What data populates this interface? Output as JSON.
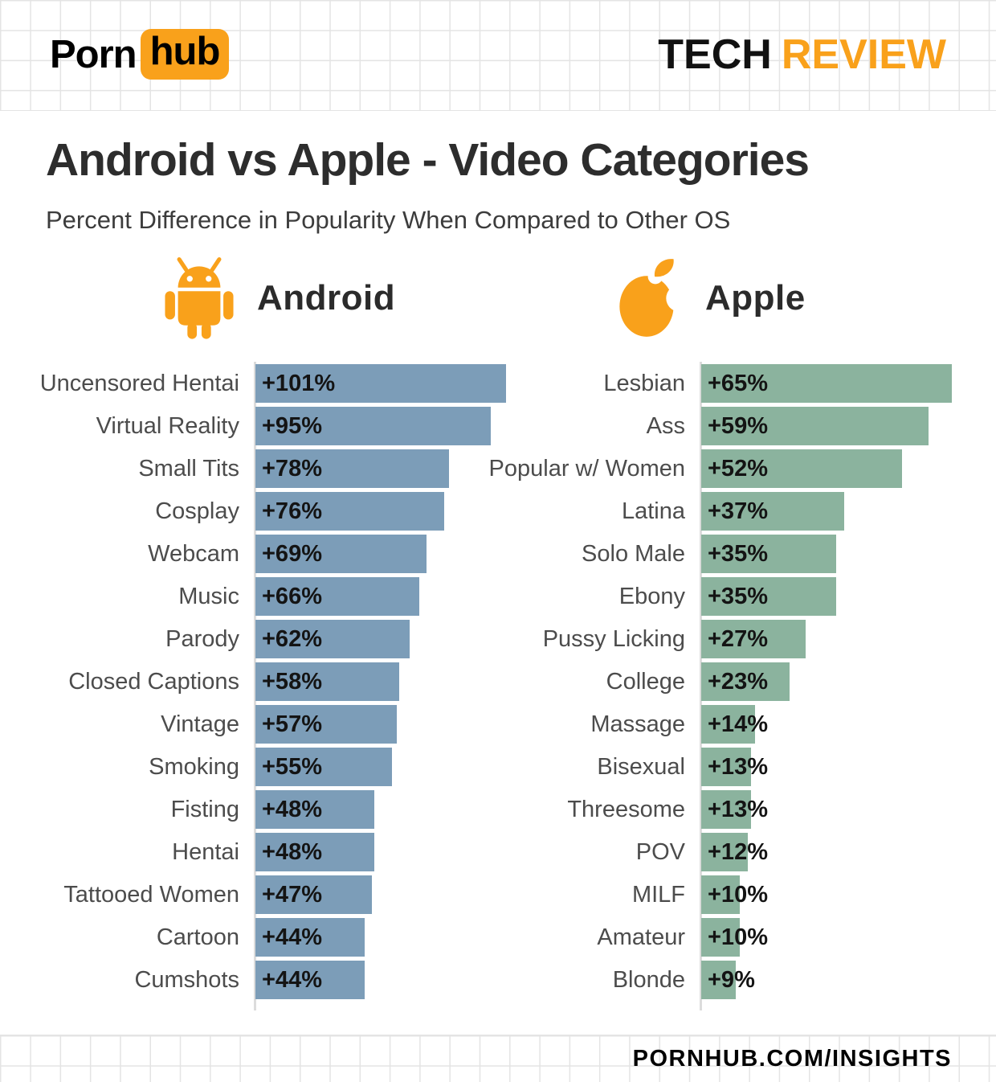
{
  "header": {
    "logo_part1": "Porn",
    "logo_part2": "hub",
    "brand_part1": "TECH",
    "brand_part2": "REVIEW"
  },
  "title": "Android vs Apple - Video Categories",
  "subtitle": "Percent Difference in Popularity When Compared to Other OS",
  "footer": {
    "url": "PORNHUB.COM/INSIGHTS"
  },
  "colors": {
    "accent_orange": "#f9a11b",
    "android_bar": "#7c9db8",
    "apple_bar": "#8bb39e",
    "grid_line": "#e4e4e4",
    "title_text": "#2d2d2d",
    "category_text": "#4c4c4c"
  },
  "chart_data": [
    {
      "type": "bar",
      "os": "Android",
      "icon": "android-robot-icon",
      "bar_color": "#7c9db8",
      "orientation": "horizontal",
      "value_unit": "% difference vs other OS",
      "value_format": "+{v}%",
      "categories": [
        "Uncensored Hentai",
        "Virtual Reality",
        "Small Tits",
        "Cosplay",
        "Webcam",
        "Music",
        "Parody",
        "Closed Captions",
        "Vintage",
        "Smoking",
        "Fisting",
        "Hentai",
        "Tattooed Women",
        "Cartoon",
        "Cumshots"
      ],
      "values": [
        101,
        95,
        78,
        76,
        69,
        66,
        62,
        58,
        57,
        55,
        48,
        48,
        47,
        44,
        44
      ],
      "value_labels": [
        "+101%",
        "+95%",
        "+78%",
        "+76%",
        "+69%",
        "+66%",
        "+62%",
        "+58%",
        "+57%",
        "+55%",
        "+48%",
        "+48%",
        "+47%",
        "+44%",
        "+44%"
      ]
    },
    {
      "type": "bar",
      "os": "Apple",
      "icon": "apple-icon",
      "bar_color": "#8bb39e",
      "orientation": "horizontal",
      "value_unit": "% difference vs other OS",
      "value_format": "+{v}%",
      "categories": [
        "Lesbian",
        "Ass",
        "Popular w/ Women",
        "Latina",
        "Solo Male",
        "Ebony",
        "Pussy Licking",
        "College",
        "Massage",
        "Bisexual",
        "Threesome",
        "POV",
        "MILF",
        "Amateur",
        "Blonde"
      ],
      "values": [
        65,
        59,
        52,
        37,
        35,
        35,
        27,
        23,
        14,
        13,
        13,
        12,
        10,
        10,
        9
      ],
      "value_labels": [
        "+65%",
        "+59%",
        "+52%",
        "+37%",
        "+35%",
        "+35%",
        "+27%",
        "+23%",
        "+14%",
        "+13%",
        "+13%",
        "+12%",
        "+10%",
        "+10%",
        "+9%"
      ]
    }
  ]
}
